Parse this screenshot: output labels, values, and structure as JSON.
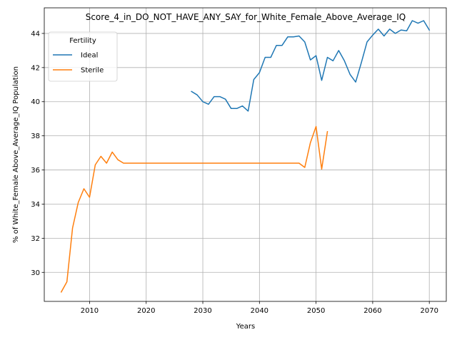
{
  "chart_data": {
    "type": "line",
    "title": "Score_4_in_DO_NOT_HAVE_ANY_SAY_for_White_Female_Above_Average_IQ",
    "xlabel": "Years",
    "ylabel": "% of White_Female Above_Average_IQ Population",
    "xlim": [
      2002,
      2073
    ],
    "ylim": [
      28.3,
      45.5
    ],
    "xticks": [
      2010,
      2020,
      2030,
      2040,
      2050,
      2060,
      2070
    ],
    "yticks": [
      30,
      32,
      34,
      36,
      38,
      40,
      42,
      44
    ],
    "grid": true,
    "legend": {
      "title": "Fertility",
      "placement": "top-left"
    },
    "series": [
      {
        "name": "Ideal",
        "color": "#1f77b4",
        "x": [
          2028,
          2029,
          2030,
          2031,
          2032,
          2033,
          2034,
          2035,
          2036,
          2037,
          2038,
          2039,
          2040,
          2041,
          2042,
          2043,
          2044,
          2045,
          2046,
          2047,
          2048,
          2049,
          2050,
          2051,
          2052,
          2053,
          2054,
          2055,
          2056,
          2057,
          2058,
          2059,
          2060,
          2061,
          2062,
          2063,
          2064,
          2065,
          2066,
          2067,
          2068,
          2069,
          2070
        ],
        "y": [
          40.6,
          40.4,
          40.0,
          39.85,
          40.3,
          40.3,
          40.15,
          39.6,
          39.6,
          39.75,
          39.45,
          41.3,
          41.7,
          42.6,
          42.6,
          43.3,
          43.3,
          43.8,
          43.8,
          43.85,
          43.5,
          42.45,
          42.7,
          41.25,
          42.6,
          42.4,
          43.0,
          42.4,
          41.6,
          41.15,
          42.3,
          43.5,
          43.9,
          44.25,
          43.85,
          44.25,
          44.0,
          44.2,
          44.15,
          44.75,
          44.6,
          44.75,
          44.2
        ]
      },
      {
        "name": "Sterile",
        "color": "#ff7f0e",
        "x": [
          2005,
          2006,
          2007,
          2008,
          2009,
          2010,
          2011,
          2012,
          2013,
          2014,
          2015,
          2016,
          2017,
          2018,
          2019,
          2020,
          2021,
          2022,
          2023,
          2024,
          2025,
          2026,
          2027,
          2028,
          2029,
          2030,
          2031,
          2032,
          2033,
          2034,
          2035,
          2036,
          2037,
          2038,
          2039,
          2040,
          2041,
          2042,
          2043,
          2044,
          2045,
          2046,
          2047,
          2048,
          2049,
          2050,
          2051,
          2052
        ],
        "y": [
          28.85,
          29.45,
          32.6,
          34.1,
          34.9,
          34.4,
          36.3,
          36.8,
          36.4,
          37.05,
          36.6,
          36.4,
          36.4,
          36.4,
          36.4,
          36.4,
          36.4,
          36.4,
          36.4,
          36.4,
          36.4,
          36.4,
          36.4,
          36.4,
          36.4,
          36.4,
          36.4,
          36.4,
          36.4,
          36.4,
          36.4,
          36.4,
          36.4,
          36.4,
          36.4,
          36.4,
          36.4,
          36.4,
          36.4,
          36.4,
          36.4,
          36.4,
          36.4,
          36.15,
          37.6,
          38.55,
          36.05,
          38.25
        ]
      }
    ]
  }
}
